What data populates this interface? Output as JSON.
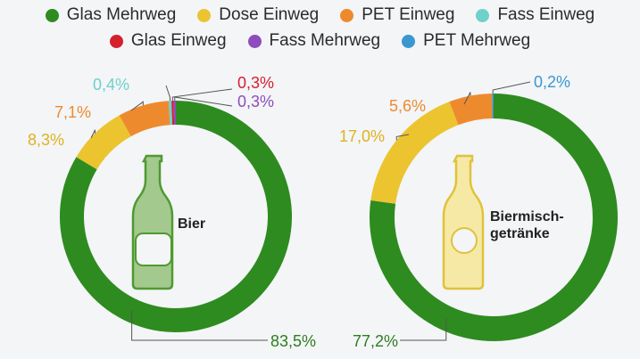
{
  "legend": [
    {
      "label": "Glas Mehrweg",
      "color": "#2e8b1f"
    },
    {
      "label": "Dose Einweg",
      "color": "#ebc42f"
    },
    {
      "label": "PET Einweg",
      "color": "#ee8a2e"
    },
    {
      "label": "Fass Einweg",
      "color": "#6fd0cc"
    },
    {
      "label": "Glas Einweg",
      "color": "#d6202d"
    },
    {
      "label": "Fass Mehrweg",
      "color": "#8e4dbb"
    },
    {
      "label": "PET Mehrweg",
      "color": "#3a97cf"
    }
  ],
  "chart_data": [
    {
      "type": "pie",
      "title": "Bier",
      "series": [
        {
          "name": "Glas Mehrweg",
          "value": 83.5,
          "label": "83,5%"
        },
        {
          "name": "Dose Einweg",
          "value": 8.3,
          "label": "8,3%"
        },
        {
          "name": "PET Einweg",
          "value": 7.1,
          "label": "7,1%"
        },
        {
          "name": "Fass Einweg",
          "value": 0.4,
          "label": "0,4%"
        },
        {
          "name": "Glas Einweg",
          "value": 0.3,
          "label": "0,3%"
        },
        {
          "name": "Fass Mehrweg",
          "value": 0.3,
          "label": "0,3%"
        }
      ]
    },
    {
      "type": "pie",
      "title": "Biermisch-getränke",
      "series": [
        {
          "name": "Glas Mehrweg",
          "value": 77.2,
          "label": "77,2%"
        },
        {
          "name": "Dose Einweg",
          "value": 17.0,
          "label": "17,0%"
        },
        {
          "name": "PET Einweg",
          "value": 5.6,
          "label": "5,6%"
        },
        {
          "name": "PET Mehrweg",
          "value": 0.2,
          "label": "0,2%"
        }
      ]
    }
  ]
}
